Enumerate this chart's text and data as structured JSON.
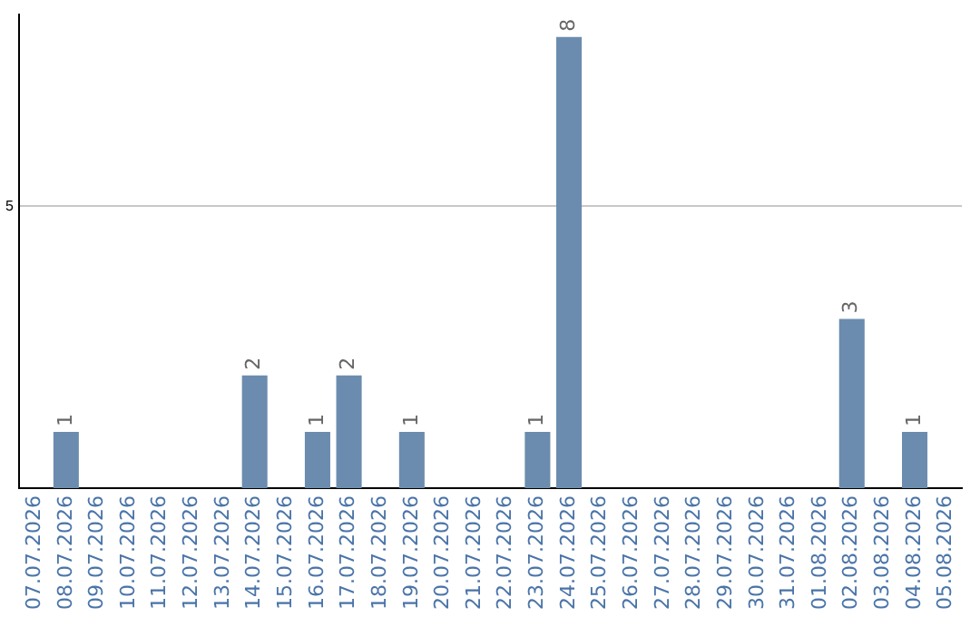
{
  "chart_data": {
    "type": "bar",
    "categories": [
      "07.07.2026",
      "08.07.2026",
      "09.07.2026",
      "10.07.2026",
      "11.07.2026",
      "12.07.2026",
      "13.07.2026",
      "14.07.2026",
      "15.07.2026",
      "16.07.2026",
      "17.07.2026",
      "18.07.2026",
      "19.07.2026",
      "20.07.2026",
      "21.07.2026",
      "22.07.2026",
      "23.07.2026",
      "24.07.2026",
      "25.07.2026",
      "26.07.2026",
      "27.07.2026",
      "28.07.2026",
      "29.07.2026",
      "30.07.2026",
      "31.07.2026",
      "01.08.2026",
      "02.08.2026",
      "03.08.2026",
      "04.08.2026",
      "05.08.2026"
    ],
    "values": [
      0,
      1,
      0,
      0,
      0,
      0,
      0,
      2,
      0,
      1,
      2,
      0,
      1,
      0,
      0,
      0,
      1,
      8,
      0,
      0,
      0,
      0,
      0,
      0,
      0,
      0,
      3,
      0,
      1,
      0
    ],
    "value_labels": [
      null,
      "1",
      null,
      null,
      null,
      null,
      null,
      "2",
      null,
      "1",
      "2",
      null,
      "1",
      null,
      null,
      null,
      "1",
      "8",
      null,
      null,
      null,
      null,
      null,
      null,
      null,
      null,
      "3",
      null,
      "1",
      null
    ],
    "color": "#6b8cae",
    "ylim": [
      0,
      8.4
    ],
    "yticks": [
      5
    ],
    "grid": "y",
    "legend": false
  }
}
